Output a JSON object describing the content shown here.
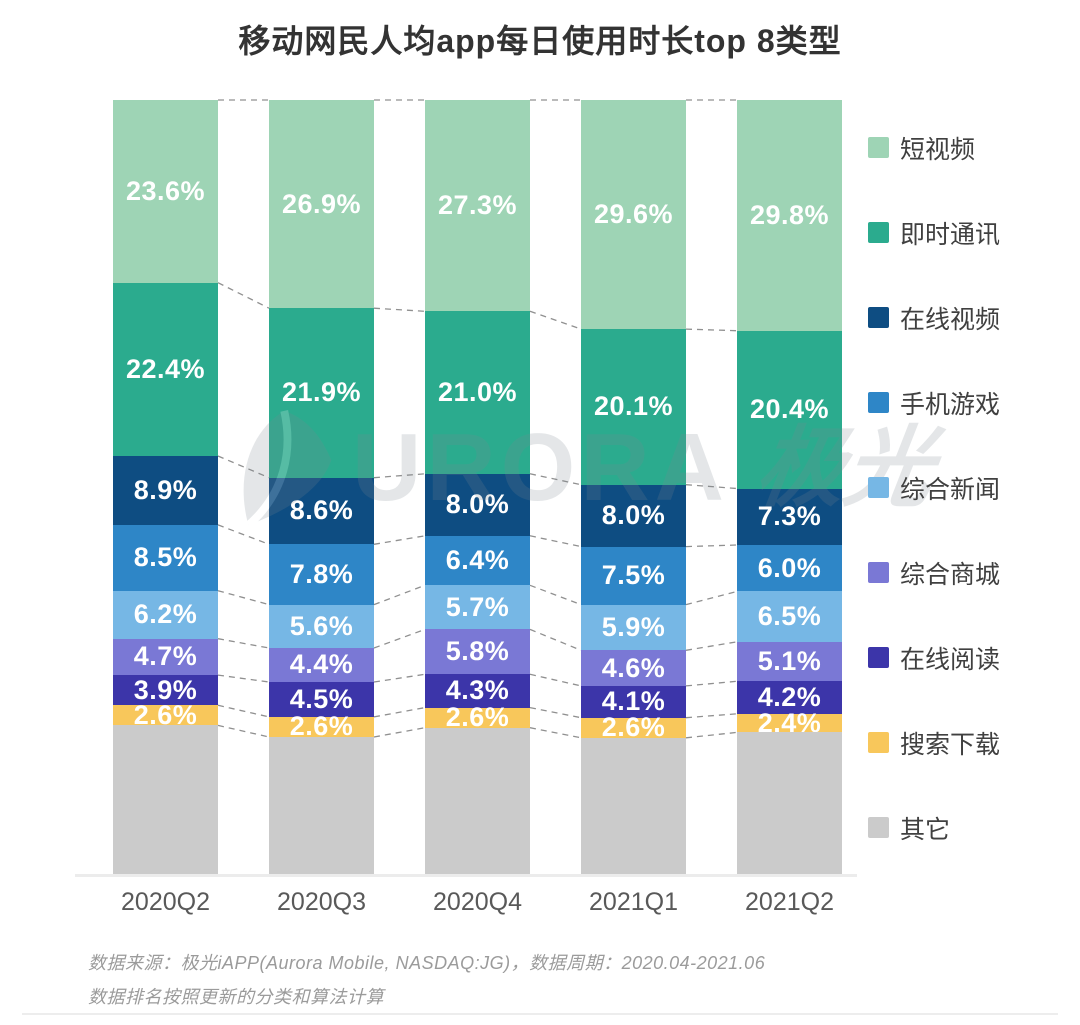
{
  "title": "移动网民人均app每日使用时长top 8类型",
  "chart_data": {
    "type": "bar",
    "variant": "100-percent-stacked-column",
    "title": "移动网民人均app每日使用时长top 8类型",
    "categories": [
      "2020Q2",
      "2020Q3",
      "2020Q4",
      "2021Q1",
      "2021Q2"
    ],
    "series": [
      {
        "name": "短视频",
        "color": "#9ED4B5",
        "values": [
          23.6,
          26.9,
          27.3,
          29.6,
          29.8
        ]
      },
      {
        "name": "即时通讯",
        "color": "#2BAB8E",
        "values": [
          22.4,
          21.9,
          21.0,
          20.1,
          20.4
        ]
      },
      {
        "name": "在线视频",
        "color": "#0E4D82",
        "values": [
          8.9,
          8.6,
          8.0,
          8.0,
          7.3
        ]
      },
      {
        "name": "手机游戏",
        "color": "#2E86C7",
        "values": [
          8.5,
          7.8,
          6.4,
          7.5,
          6.0
        ]
      },
      {
        "name": "综合新闻",
        "color": "#76B7E5",
        "values": [
          6.2,
          5.6,
          5.7,
          5.9,
          6.5
        ]
      },
      {
        "name": "综合商城",
        "color": "#7A78D5",
        "values": [
          4.7,
          4.4,
          5.8,
          4.6,
          5.1
        ]
      },
      {
        "name": "在线阅读",
        "color": "#3C35A9",
        "values": [
          3.9,
          4.5,
          4.3,
          4.1,
          4.2
        ]
      },
      {
        "name": "搜索下载",
        "color": "#F8C75B",
        "values": [
          2.6,
          2.6,
          2.6,
          2.6,
          2.4
        ]
      },
      {
        "name": "其它",
        "color": "#CBCBCB",
        "values": [
          19.2,
          17.7,
          18.9,
          17.6,
          18.3
        ],
        "labels_shown": false,
        "derived_remainder": true
      }
    ],
    "value_suffix": "%",
    "ylim": [
      0,
      100
    ],
    "legend_position": "right",
    "connector_lines": "dashed",
    "grid": false
  },
  "watermark": {
    "brand_text": "URORA",
    "brand_suffix": "极光"
  },
  "footer": {
    "line1": "数据来源：极光iAPP(Aurora Mobile, NASDAQ:JG)，数据周期：2020.04-2021.06",
    "line2": "数据排名按照更新的分类和算法计算"
  }
}
